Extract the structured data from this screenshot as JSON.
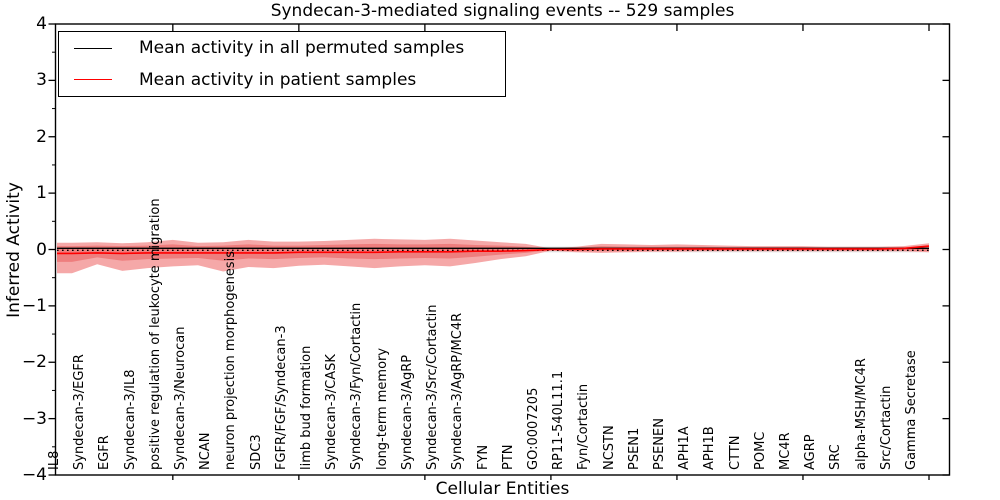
{
  "title": "Syndecan-3-mediated signaling events -- 529 samples",
  "axes": {
    "ylabel": "Inferred Activity",
    "xlabel": "Cellular Entities",
    "ytick_labels": [
      "4",
      "3",
      "2",
      "1",
      "0",
      "−1",
      "−2",
      "−3",
      "−4"
    ]
  },
  "legend": {
    "entries": [
      {
        "label": "Mean activity in all permuted samples",
        "color": "#000000"
      },
      {
        "label": "Mean activity in patient samples",
        "color": "#ff0000"
      }
    ]
  },
  "colors": {
    "patient_line": "#ff0000",
    "permuted_line": "#000000",
    "outer_band": "#f5a8a8",
    "inner_band": "#ee7e7e",
    "permuted_band": "#dedede",
    "axis": "#000000"
  },
  "chart_data": {
    "type": "line",
    "title": "Syndecan-3-mediated signaling events -- 529 samples",
    "xlabel": "Cellular Entities",
    "ylabel": "Inferred Activity",
    "ylim": [
      -4,
      4
    ],
    "yticks": [
      4,
      3,
      2,
      1,
      0,
      -1,
      -2,
      -3,
      -4
    ],
    "legend_position": "upper left",
    "grid": false,
    "categories": [
      "IL8",
      "Syndecan-3/EGFR",
      "EGFR",
      "Syndecan-3/IL8",
      "positive regulation of leukocyte migration",
      "Syndecan-3/Neurocan",
      "NCAN",
      "neuron projection morphogenesis",
      "SDC3",
      "FGFR/FGF/Syndecan-3",
      "limb bud formation",
      "Syndecan-3/CASK",
      "Syndecan-3/Fyn/Cortactin",
      "long-term memory",
      "Syndecan-3/AgRP",
      "Syndecan-3/Src/Cortactin",
      "Syndecan-3/AgRP/MC4R",
      "FYN",
      "PTN",
      "GO:0007205",
      "RP11-540L11.1",
      "Fyn/Cortactin",
      "NCSTN",
      "PSEN1",
      "PSENEN",
      "APH1A",
      "APH1B",
      "CTTN",
      "POMC",
      "MC4R",
      "AGRP",
      "SRC",
      "alpha-MSH/MC4R",
      "Src/Cortactin",
      "Gamma Secretase"
    ],
    "series": [
      {
        "name": "Mean activity in all permuted samples",
        "values": [
          0,
          0,
          0,
          0,
          0,
          0,
          0,
          0,
          0,
          0,
          0,
          0,
          0,
          0,
          0,
          0,
          0,
          0,
          0,
          0,
          0,
          0,
          0,
          0,
          0,
          0,
          0,
          0,
          0,
          0,
          0,
          0,
          0,
          0,
          0
        ]
      },
      {
        "name": "Mean activity in patient samples",
        "values": [
          -0.07,
          -0.06,
          -0.07,
          -0.06,
          -0.06,
          -0.06,
          -0.06,
          -0.06,
          -0.06,
          -0.05,
          -0.05,
          -0.05,
          -0.05,
          -0.04,
          -0.04,
          -0.04,
          -0.03,
          -0.03,
          -0.02,
          0.0,
          0.0,
          0.01,
          0.01,
          0.01,
          0.01,
          0.01,
          0.01,
          0.01,
          0.01,
          0.01,
          0.01,
          0.01,
          0.01,
          0.02,
          0.06
        ]
      }
    ],
    "permuted_band_halfwidth": 0.05,
    "patient_band_outer_upper": [
      0.12,
      0.13,
      0.11,
      0.13,
      0.17,
      0.12,
      0.13,
      0.17,
      0.14,
      0.14,
      0.15,
      0.17,
      0.19,
      0.18,
      0.17,
      0.19,
      0.16,
      0.13,
      0.1,
      0.02,
      0.05,
      0.1,
      0.09,
      0.08,
      0.09,
      0.08,
      0.07,
      0.06,
      0.06,
      0.06,
      0.05,
      0.05,
      0.05,
      0.06,
      0.11
    ],
    "patient_band_outer_lower": [
      -0.42,
      -0.26,
      -0.38,
      -0.33,
      -0.3,
      -0.28,
      -0.39,
      -0.31,
      -0.33,
      -0.29,
      -0.27,
      -0.3,
      -0.33,
      -0.3,
      -0.28,
      -0.3,
      -0.24,
      -0.17,
      -0.12,
      -0.02,
      -0.05,
      -0.06,
      -0.05,
      -0.04,
      -0.04,
      -0.03,
      -0.03,
      -0.03,
      -0.03,
      -0.03,
      -0.03,
      -0.03,
      -0.03,
      -0.03,
      -0.05
    ],
    "patient_band_inner_upper": [
      0.06,
      0.07,
      0.06,
      0.07,
      0.09,
      0.06,
      0.07,
      0.09,
      0.07,
      0.07,
      0.08,
      0.09,
      0.1,
      0.09,
      0.09,
      0.1,
      0.08,
      0.07,
      0.05,
      0.01,
      0.03,
      0.06,
      0.05,
      0.05,
      0.05,
      0.05,
      0.04,
      0.04,
      0.04,
      0.04,
      0.03,
      0.03,
      0.03,
      0.04,
      0.07
    ],
    "patient_band_inner_lower": [
      -0.22,
      -0.14,
      -0.2,
      -0.17,
      -0.16,
      -0.15,
      -0.2,
      -0.16,
      -0.17,
      -0.15,
      -0.14,
      -0.16,
      -0.17,
      -0.16,
      -0.15,
      -0.16,
      -0.13,
      -0.09,
      -0.06,
      -0.01,
      -0.03,
      -0.03,
      -0.03,
      -0.02,
      -0.02,
      -0.02,
      -0.02,
      -0.02,
      -0.02,
      -0.02,
      -0.02,
      -0.02,
      -0.02,
      -0.02,
      -0.03
    ],
    "xtick_every": 5
  }
}
